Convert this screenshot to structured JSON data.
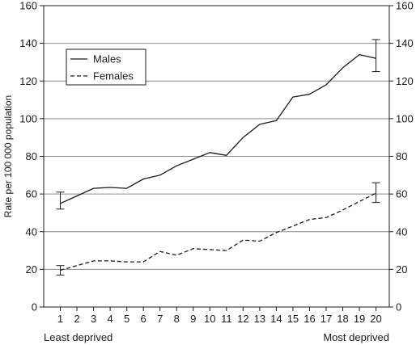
{
  "chart_data": {
    "type": "line",
    "title": "",
    "xlabel": "",
    "ylabel": "Rate per 100 000 population",
    "x": [
      1,
      2,
      3,
      4,
      5,
      6,
      7,
      8,
      9,
      10,
      11,
      12,
      13,
      14,
      15,
      16,
      17,
      18,
      19,
      20
    ],
    "xlim": [
      0,
      20.8
    ],
    "ylim": [
      0,
      160
    ],
    "yticks": [
      0,
      20,
      40,
      60,
      80,
      100,
      120,
      140,
      160
    ],
    "right_axis_ticks": true,
    "grid": "horizontal",
    "legend": "top-left",
    "x_end_labels": {
      "left": "Least deprived",
      "right": "Most deprived"
    },
    "series": [
      {
        "name": "Males",
        "style": "solid",
        "color": "#1a1a1a",
        "values": [
          55.0,
          59.0,
          63.0,
          63.5,
          63.0,
          68.0,
          70.0,
          75.0,
          78.5,
          82.0,
          80.5,
          90.0,
          97.0,
          99.0,
          111.5,
          113.0,
          118.0,
          127.0,
          134.0,
          132.0
        ],
        "error_bars": [
          {
            "x": 1,
            "low": 52,
            "high": 61
          },
          {
            "x": 20,
            "low": 125,
            "high": 142
          }
        ]
      },
      {
        "name": "Females",
        "style": "dashed",
        "color": "#1a1a1a",
        "values": [
          19.5,
          22.0,
          24.5,
          24.5,
          24.0,
          24.0,
          29.5,
          27.5,
          31.0,
          30.5,
          30.0,
          35.5,
          35.0,
          39.5,
          43.0,
          46.5,
          47.5,
          51.5,
          56.0,
          60.5
        ],
        "error_bars": [
          {
            "x": 1,
            "low": 17,
            "high": 22
          },
          {
            "x": 20,
            "low": 55.5,
            "high": 66
          }
        ]
      }
    ]
  }
}
